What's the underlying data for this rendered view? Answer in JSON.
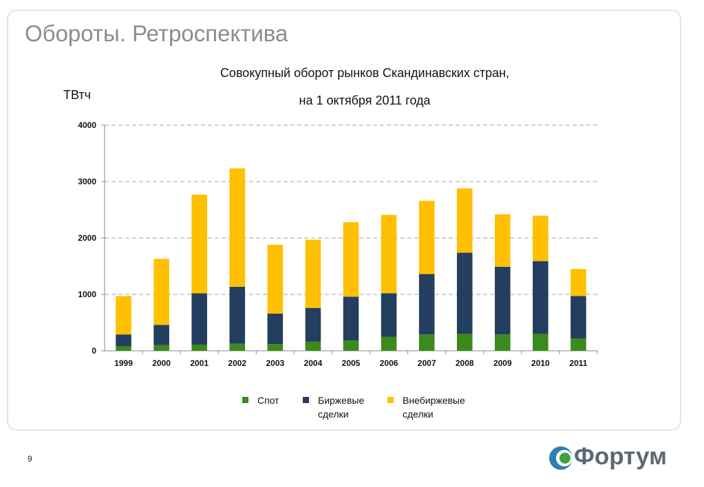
{
  "slide": {
    "title": "Обороты. Ретроспектива",
    "page_number": "9",
    "logo_text": "Фортум"
  },
  "chart_data": {
    "type": "bar",
    "stacked": true,
    "title_line1": "Совокупный оборот рынков Скандинавских стран,",
    "title_line2": "на 1 октября 2011 года",
    "xlabel": "",
    "ylabel": "ТВтч",
    "ylim": [
      0,
      4000
    ],
    "yticks": [
      "0",
      "1000",
      "2000",
      "3000",
      "4000"
    ],
    "grid": true,
    "legend_position": "bottom",
    "categories": [
      "1999",
      "2000",
      "2001",
      "2002",
      "2003",
      "2004",
      "2005",
      "2006",
      "2007",
      "2008",
      "2009",
      "2010",
      "2011"
    ],
    "series": [
      {
        "name": "Спот",
        "color": "#3a8a1c",
        "values": [
          80,
          100,
          110,
          125,
          120,
          165,
          180,
          250,
          290,
          300,
          290,
          300,
          220
        ]
      },
      {
        "name": "Биржевые\nсделки",
        "color": "#243e5f",
        "values": [
          210,
          360,
          910,
          1010,
          540,
          595,
          780,
          770,
          1070,
          1440,
          1200,
          1290,
          750
        ]
      },
      {
        "name": "Внебиржевые\nсделки",
        "color": "#ffc000",
        "values": [
          680,
          1170,
          1750,
          2100,
          1220,
          1210,
          1320,
          1390,
          1300,
          1140,
          930,
          805,
          480
        ]
      }
    ]
  }
}
